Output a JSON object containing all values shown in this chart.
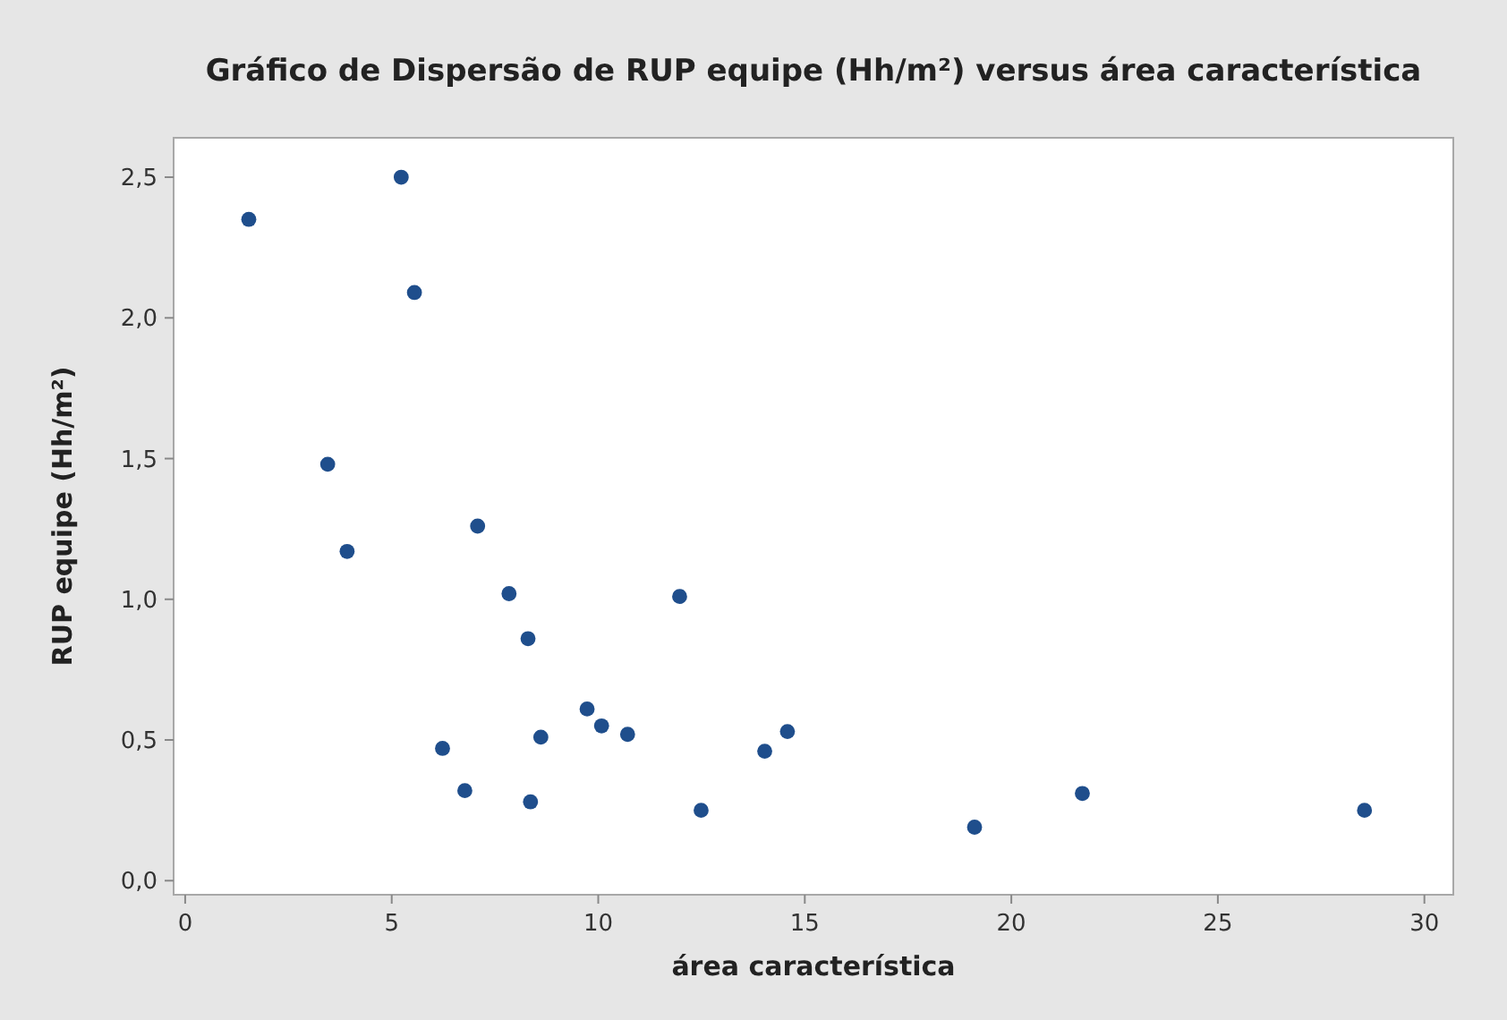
{
  "chart_data": {
    "type": "scatter",
    "title": "Gráfico de Dispersão de RUP equipe (Hh/m²) versus área característica",
    "xlabel": "área característica",
    "ylabel": "RUP equipe (Hh/m²)",
    "x": [
      1.54,
      5.23,
      5.55,
      3.45,
      3.92,
      7.08,
      7.84,
      8.3,
      11.97,
      6.23,
      6.77,
      8.36,
      8.61,
      9.73,
      10.08,
      10.71,
      12.49,
      14.03,
      14.58,
      19.11,
      21.72,
      28.55
    ],
    "values": [
      2.35,
      2.5,
      2.09,
      1.48,
      1.17,
      1.26,
      1.02,
      0.86,
      1.01,
      0.47,
      0.32,
      0.28,
      0.51,
      0.61,
      0.55,
      0.52,
      0.25,
      0.46,
      0.53,
      0.19,
      0.31,
      0.25
    ],
    "color": "#1f4e8c",
    "marker": "circle",
    "xlim": [
      -0.28,
      30.7
    ],
    "xticks": [
      0,
      5,
      10,
      15,
      20,
      25,
      30
    ],
    "ylim": [
      -0.05,
      2.64
    ],
    "yticks": [
      {
        "value": 0,
        "label": "0,0"
      },
      {
        "value": 0.5,
        "label": "0,5"
      },
      {
        "value": 1,
        "label": "1,0"
      },
      {
        "value": 1.5,
        "label": "1,5"
      },
      {
        "value": 2,
        "label": "2,0"
      },
      {
        "value": 2.5,
        "label": "2,5"
      }
    ],
    "grid": false
  }
}
